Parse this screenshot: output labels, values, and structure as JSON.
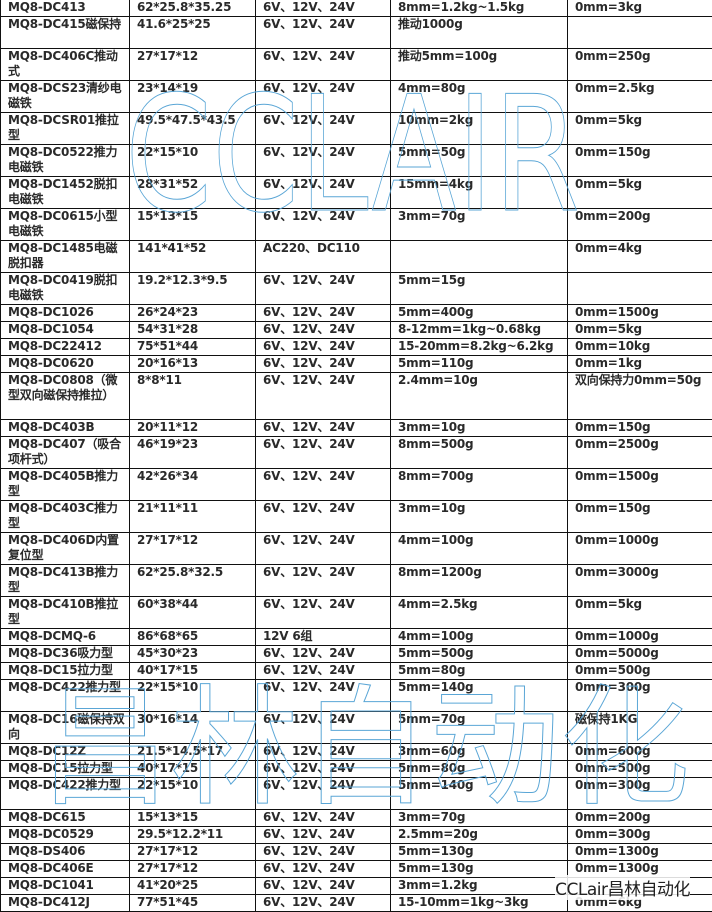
{
  "rows": [
    {
      "model": "MQ8-DC413",
      "size": "62*25.8*35.25",
      "voltage": "6V、12V、24V",
      "force": "8mm=1.2kg~1.5kg",
      "hold": "0mm=3kg",
      "lines": 1
    },
    {
      "model": "MQ8-DC415磁保持",
      "size": "41.6*25*25",
      "voltage": "6V、12V、24V",
      "force": "推动1000g",
      "hold": "",
      "lines": 2
    },
    {
      "model": "MQ8-DC406C推动式",
      "size": "27*17*12",
      "voltage": "6V、12V、24V",
      "force": "推动5mm=100g",
      "hold": "0mm=250g",
      "lines": 2
    },
    {
      "model": "MQ8-DCS23清纱电磁铁",
      "size": "23*14*19",
      "voltage": "6V、12V、24V",
      "force": "4mm=80g",
      "hold": "0mm=2.5kg",
      "lines": 2
    },
    {
      "model": "MQ8-DCSR01推拉型",
      "size": "49.5*47.5*43.5",
      "voltage": "6V、12V、24V",
      "force": "10mm=2kg",
      "hold": "0mm=5kg",
      "lines": 2
    },
    {
      "model": "MQ8-DC0522推力电磁铁",
      "size": "22*15*10",
      "voltage": "6V、12V、24V",
      "force": "5mm=50g",
      "hold": "0mm=150g",
      "lines": 2
    },
    {
      "model": "MQ8-DC1452脱扣电磁铁",
      "size": "28*31*52",
      "voltage": "6V、12V、24V",
      "force": "15mm=4kg",
      "hold": "0mm=5kg",
      "lines": 2
    },
    {
      "model": "MQ8-DC0615小型电磁铁",
      "size": "15*13*15",
      "voltage": "6V、12V、24V",
      "force": "3mm=70g",
      "hold": "0mm=200g",
      "lines": 2
    },
    {
      "model": "MQ8-DC1485电磁脱扣器",
      "size": "141*41*52",
      "voltage": "AC220、DC110",
      "force": "",
      "hold": "0mm=4kg",
      "lines": 2
    },
    {
      "model": "MQ8-DC0419脱扣电磁铁",
      "size": "19.2*12.3*9.5",
      "voltage": "6V、12V、24V",
      "force": "5mm=15g",
      "hold": "",
      "lines": 2
    },
    {
      "model": "MQ8-DC1026",
      "size": "26*24*23",
      "voltage": "6V、12V、24V",
      "force": "5mm=400g",
      "hold": "0mm=1500g",
      "lines": 1
    },
    {
      "model": "MQ8-DC1054",
      "size": "54*31*28",
      "voltage": "6V、12V、24V",
      "force": "8-12mm=1kg~0.68kg",
      "hold": "0mm=5kg",
      "lines": 1
    },
    {
      "model": "MQ8-DC22412",
      "size": "75*51*44",
      "voltage": "6V、12V、24V",
      "force": "15-20mm=8.2kg~6.2kg",
      "hold": "0mm=10kg",
      "lines": 1
    },
    {
      "model": "MQ8-DC0620",
      "size": "20*16*13",
      "voltage": "6V、12V、24V",
      "force": "5mm=110g",
      "hold": "0mm=1kg",
      "lines": 1
    },
    {
      "model": "MQ8-DC0808（微型双向磁保持推拉）",
      "size": "8*8*11",
      "voltage": "6V、12V、24V",
      "force": "2.4mm=10g",
      "hold": "双向保持力0mm=50g",
      "lines": 3
    },
    {
      "model": "MQ8-DC403B",
      "size": "20*11*12",
      "voltage": "6V、12V、24V",
      "force": "3mm=10g",
      "hold": "0mm=150g",
      "lines": 1
    },
    {
      "model": "MQ8-DC407（吸合项杆式）",
      "size": "46*19*23",
      "voltage": "6V、12V、24V",
      "force": "8mm=500g",
      "hold": "0mm=2500g",
      "lines": 2
    },
    {
      "model": "MQ8-DC405B推力型",
      "size": "42*26*34",
      "voltage": "6V、12V、24V",
      "force": "8mm=700g",
      "hold": "0mm=1500g",
      "lines": 2
    },
    {
      "model": "MQ8-DC403C推力型",
      "size": "21*11*11",
      "voltage": "6V、12V、24V",
      "force": "3mm=10g",
      "hold": "0mm=150g",
      "lines": 2
    },
    {
      "model": "MQ8-DC406D内置复位型",
      "size": "27*17*12",
      "voltage": "6V、12V、24V",
      "force": "4mm=100g",
      "hold": "0mm=1000g",
      "lines": 2
    },
    {
      "model": "MQ8-DC413B推力型",
      "size": "62*25.8*32.5",
      "voltage": "6V、12V、24V",
      "force": "8mm=1200g",
      "hold": "0mm=3000g",
      "lines": 2
    },
    {
      "model": "MQ8-DC410B推拉型",
      "size": "60*38*44",
      "voltage": "6V、12V、24V",
      "force": "4mm=2.5kg",
      "hold": "0mm=5kg",
      "lines": 2
    },
    {
      "model": "MQ8-DCMQ-6",
      "size": "86*68*65",
      "voltage": "12V  6组",
      "force": "4mm=100g",
      "hold": "0mm=1000g",
      "lines": 1
    },
    {
      "model": "MQ8-DC36吸力型",
      "size": "45*30*23",
      "voltage": "6V、12V、24V",
      "force": "5mm=500g",
      "hold": "0mm=5000g",
      "lines": 1
    },
    {
      "model": "MQ8-DC15拉力型",
      "size": "40*17*15",
      "voltage": "6V、12V、24V",
      "force": "5mm=80g",
      "hold": "0mm=500g",
      "lines": 1
    },
    {
      "model": "MQ8-DC422推力型",
      "size": "22*15*10",
      "voltage": "6V、12V、24V",
      "force": "5mm=140g",
      "hold": "0mm=300g",
      "lines": 2
    },
    {
      "model": "MQ8-DC16磁保持双向",
      "size": "30*16*14",
      "voltage": "6V、12V、24V",
      "force": "5mm=70g",
      "hold": "磁保持1KG",
      "lines": 2
    },
    {
      "model": "MQ8-DC12Z",
      "size": "21.5*14.5*17",
      "voltage": "6V、12V、24V",
      "force": "3mm=60g",
      "hold": "0mm=600g",
      "lines": 1
    },
    {
      "model": "MQ8-DC15拉力型",
      "size": "40*17*15",
      "voltage": "6V、12V、24V",
      "force": "5mm=80g",
      "hold": "0mm=500g",
      "lines": 1
    },
    {
      "model": "MQ8-DC422推力型",
      "size": "22*15*10",
      "voltage": "6V、12V、24V",
      "force": "5mm=140g",
      "hold": "0mm=300g",
      "lines": 2
    },
    {
      "model": "MQ8-DC615",
      "size": "15*13*15",
      "voltage": "6V、12V、24V",
      "force": "3mm=70g",
      "hold": "0mm=200g",
      "lines": 1
    },
    {
      "model": "MQ8-DC0529",
      "size": "29.5*12.2*11",
      "voltage": "6V、12V、24V",
      "force": "2.5mm=20g",
      "hold": "0mm=300g",
      "lines": 1
    },
    {
      "model": "MQ8-DS406",
      "size": "27*17*12",
      "voltage": "6V、12V、24V",
      "force": "5mm=130g",
      "hold": "0mm=1300g",
      "lines": 1
    },
    {
      "model": "MQ8-DC406E",
      "size": "27*17*12",
      "voltage": "6V、12V、24V",
      "force": "5mm=130g",
      "hold": "0mm=1300g",
      "lines": 1
    },
    {
      "model": "MQ8-DC1041",
      "size": "41*20*25",
      "voltage": "6V、12V、24V",
      "force": "3mm=1.2kg",
      "hold": "",
      "lines": 1
    },
    {
      "model": "MQ8-DC412J",
      "size": "77*51*45",
      "voltage": "6V、12V、24V",
      "force": "15-10mm=1kg~3kg",
      "hold": "0mm=6kg",
      "lines": 1
    }
  ],
  "watermarks": {
    "latin": "CCLAIR",
    "chinese": "昌林自动化",
    "corner": "CCLair昌林自动化",
    "color": "#5aa6d6"
  }
}
